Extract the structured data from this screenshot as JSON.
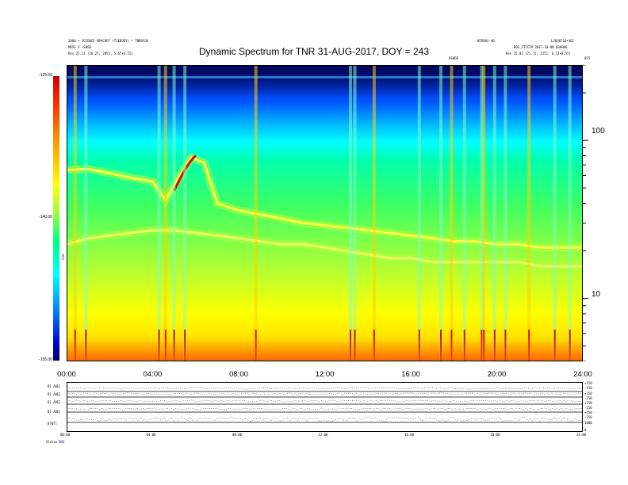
{
  "header": {
    "title": "Dynamic Spectrum for TNR 31-AUG-2017, DOY = 243",
    "left_info_1": "2000 • SCIENCE NPACKET (TIEBODY) • TNROFOG",
    "left_info_2": "MOSS 3 •S0OE",
    "left_info_3": "Rev 25.11 (26.27, 2851, 5.67•6.55)",
    "right_info_1": "NTDOOJ-40",
    "right_info_2": "L2030710•461",
    "right_info_3": "BOS_FITCTR 2017-10-00 030006",
    "right_info_4": "Rev 25.01 (25.71, 2251, 6.13•0.55)",
    "marker_1": "OSWDE",
    "marker_2": "015"
  },
  "colorbar": {
    "label": "TNR",
    "ticks": [
      "-125.00",
      "-140.00",
      "-155.00"
    ]
  },
  "bottom_panel": {
    "lane_labels": [
      "B[ AOE]",
      "B[ AOE]",
      "B[ AOE]",
      "B[ AOE]",
      "B[NT]"
    ],
    "lane_right_labels": [
      "+150",
      "-150",
      "+150",
      "-150",
      "+150",
      "-150",
      "+150",
      "-150",
      "1000",
      "0"
    ],
    "x_ticks": [
      "00:00",
      "04:00",
      "08:00",
      "12:00",
      "16:00",
      "20:00",
      "24:00"
    ],
    "footer_left": "Status",
    "footer_right": "SNS"
  },
  "chart_data": {
    "type": "heatmap",
    "title": "Dynamic Spectrum for TNR 31-AUG-2017, DOY = 243",
    "x_ticks": [
      "00:00",
      "04:00",
      "08:00",
      "12:00",
      "16:00",
      "20:00",
      "24:00"
    ],
    "xlim": [
      0,
      24
    ],
    "y_ticks": [
      "100",
      "10"
    ],
    "y_scale": "log",
    "ylim": [
      4,
      300
    ],
    "colorbar_label": "TNR",
    "colorbar_ticks": [
      "-125.00",
      "-140.00",
      "-155.00"
    ],
    "colorbar_range": [
      -155.0,
      -125.0
    ],
    "features": [
      {
        "name": "upper_band_edge",
        "x": [
          0,
          1,
          2,
          3,
          4,
          4.6,
          5.2,
          5.8,
          6.4,
          7,
          8,
          9,
          10,
          11,
          12,
          13,
          14,
          15,
          16,
          17,
          18,
          19,
          20,
          21,
          22,
          23,
          24
        ],
        "y": [
          65,
          66,
          62,
          58,
          55,
          42,
          58,
          78,
          72,
          40,
          36,
          34,
          32,
          30,
          29,
          28,
          27,
          26,
          25,
          24,
          23,
          23,
          22,
          22,
          21,
          21,
          21
        ]
      },
      {
        "name": "lower_band_edge",
        "x": [
          0,
          1,
          2,
          3,
          4,
          5,
          6,
          7,
          8,
          9,
          10,
          11,
          12,
          13,
          14,
          15,
          16,
          17,
          18,
          19,
          20,
          21,
          22,
          23,
          24
        ],
        "y": [
          22,
          24,
          25,
          26,
          27,
          27,
          26,
          25,
          24,
          23,
          22,
          22,
          21,
          20,
          19,
          18,
          18,
          17,
          17,
          17,
          17,
          17,
          16,
          16,
          16
        ]
      }
    ],
    "bursts_hours": [
      0.4,
      0.9,
      4.3,
      4.6,
      5.0,
      5.5,
      8.8,
      13.2,
      13.4,
      14.3,
      16.4,
      17.4,
      17.9,
      18.5,
      19.3,
      19.4,
      19.9,
      20.4,
      21.5,
      22.7,
      23.4
    ]
  }
}
